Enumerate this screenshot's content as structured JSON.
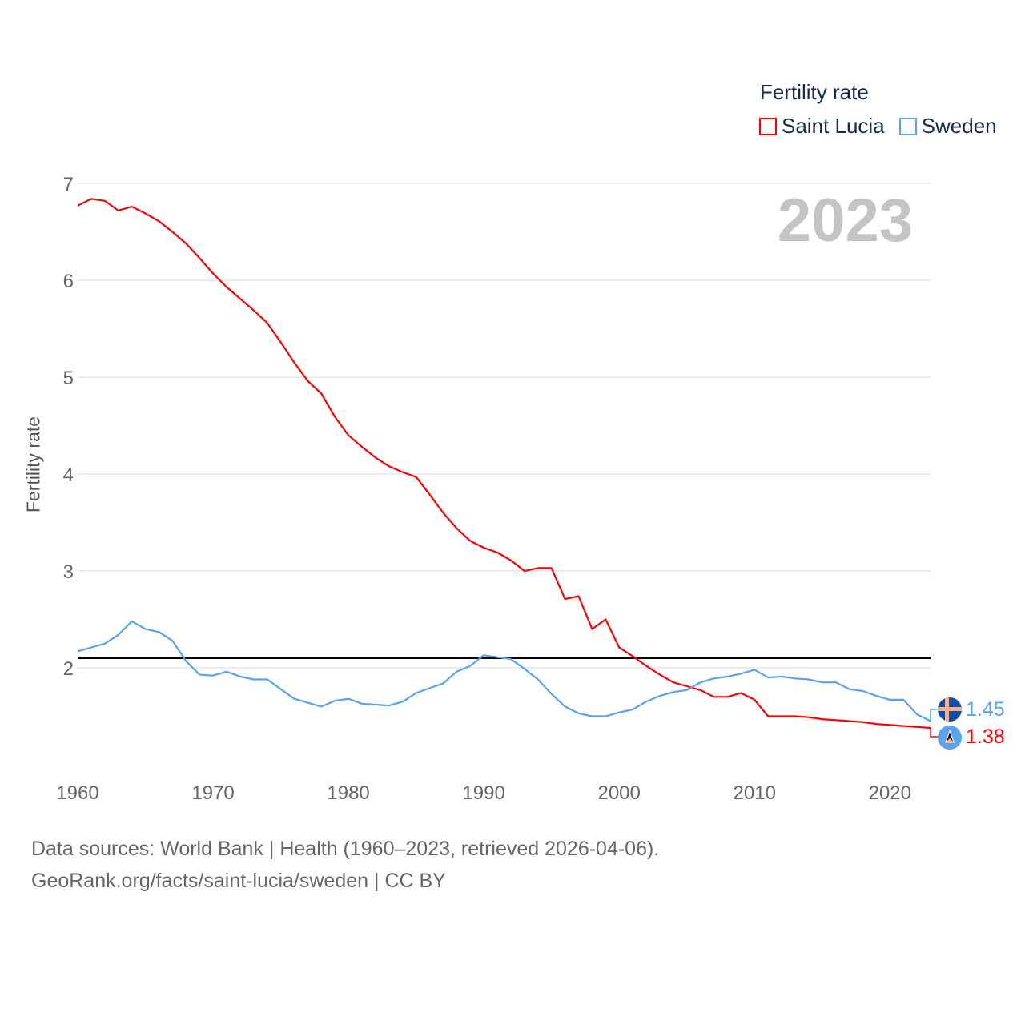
{
  "legend": {
    "title": "Fertility rate",
    "items": [
      {
        "name": "Saint Lucia",
        "color": "#ff0000"
      },
      {
        "name": "Sweden",
        "color": "#5aa2ee"
      }
    ]
  },
  "current_year": "2023",
  "footer": {
    "line1": "Data sources: World Bank | Health (1960–2023, retrieved 2026-04-06).",
    "line2": "GeoRank.org/facts/saint-lucia/sweden | CC BY"
  },
  "end_labels": {
    "saint_lucia": "1.38",
    "sweden": "1.45"
  },
  "chart_data": {
    "type": "line",
    "title": "Fertility rate",
    "xlabel": "",
    "ylabel": "Fertility rate",
    "xlim": [
      1960,
      2023
    ],
    "ylim": [
      1,
      7
    ],
    "x_ticks": [
      "1960",
      "1970",
      "1980",
      "1990",
      "2000",
      "2010",
      "2020"
    ],
    "y_ticks": [
      "2",
      "3",
      "4",
      "5",
      "6",
      "7"
    ],
    "grid": true,
    "legend_position": "top-right",
    "reference_line": {
      "y": 2.1,
      "color": "#000000"
    },
    "x_start": 1960,
    "series": [
      {
        "name": "Saint Lucia",
        "color": "#ff0000",
        "values": [
          6.77,
          6.84,
          6.82,
          6.72,
          6.76,
          6.69,
          6.61,
          6.5,
          6.38,
          6.23,
          6.07,
          5.93,
          5.81,
          5.69,
          5.56,
          5.36,
          5.15,
          4.96,
          4.83,
          4.59,
          4.4,
          4.28,
          4.17,
          4.08,
          4.02,
          3.97,
          3.79,
          3.6,
          3.44,
          3.31,
          3.24,
          3.19,
          3.11,
          3.0,
          3.03,
          3.03,
          2.71,
          2.74,
          2.4,
          2.5,
          2.21,
          2.12,
          2.02,
          1.93,
          1.85,
          1.81,
          1.77,
          1.7,
          1.7,
          1.74,
          1.67,
          1.5,
          1.5,
          1.5,
          1.49,
          1.47,
          1.46,
          1.45,
          1.44,
          1.42,
          1.41,
          1.4,
          1.39,
          1.38
        ]
      },
      {
        "name": "Sweden",
        "color": "#5aa2ee",
        "values": [
          2.17,
          2.21,
          2.25,
          2.34,
          2.48,
          2.4,
          2.37,
          2.28,
          2.07,
          1.93,
          1.92,
          1.96,
          1.91,
          1.88,
          1.88,
          1.78,
          1.68,
          1.64,
          1.6,
          1.66,
          1.68,
          1.63,
          1.62,
          1.61,
          1.65,
          1.74,
          1.79,
          1.84,
          1.96,
          2.02,
          2.13,
          2.11,
          2.09,
          1.99,
          1.88,
          1.73,
          1.6,
          1.53,
          1.5,
          1.5,
          1.54,
          1.57,
          1.65,
          1.71,
          1.75,
          1.77,
          1.85,
          1.89,
          1.91,
          1.94,
          1.98,
          1.9,
          1.91,
          1.89,
          1.88,
          1.85,
          1.85,
          1.78,
          1.76,
          1.71,
          1.67,
          1.67,
          1.52,
          1.45
        ]
      }
    ]
  }
}
